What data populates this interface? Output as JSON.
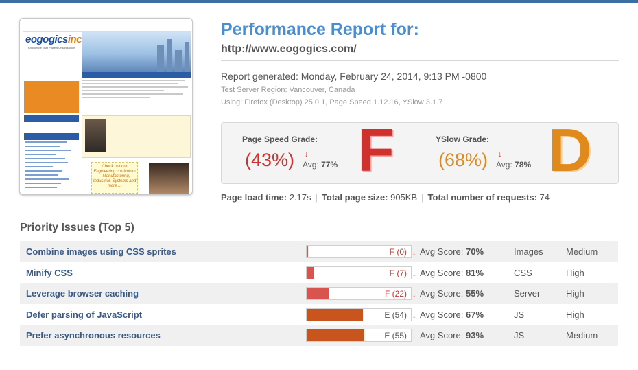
{
  "report": {
    "title": "Performance Report for:",
    "url": "http://www.eogogics.com/",
    "generated": "Report generated: Monday, February 24, 2014, 9:13 PM -0800",
    "region": "Test Server Region: Vancouver, Canada",
    "using": "Using: Firefox (Desktop) 25.0.1, Page Speed 1.12.16, YSlow 3.1.7"
  },
  "thumbnail": {
    "logo_main": "eogogics",
    "logo_suffix": "inc",
    "tagline": "Knowledge That Powers Organizations",
    "promo": "Check out our Engineering curriculum – Manufacturing, Industrial, Systems and more ..."
  },
  "grades": {
    "pagespeed": {
      "label": "Page Speed Grade:",
      "percent": "(43%)",
      "avg_prefix": "Avg:",
      "avg": "77%",
      "letter": "F",
      "color": "#d0312d"
    },
    "yslow": {
      "label": "YSlow Grade:",
      "percent": "(68%)",
      "avg_prefix": "Avg:",
      "avg": "78%",
      "letter": "D",
      "color": "#e08a1e"
    },
    "down_arrow": "↓"
  },
  "summary": {
    "load_label": "Page load time:",
    "load_value": "2.17s",
    "size_label": "Total page size:",
    "size_value": "905KB",
    "req_label": "Total number of requests:",
    "req_value": "74"
  },
  "priority": {
    "title": "Priority Issues (Top 5)",
    "avg_label": "Avg Score:",
    "issues": [
      {
        "name": "Combine images using CSS sprites",
        "grade": "F (0)",
        "score": 0,
        "avg": "70%",
        "type": "Images",
        "priority": "Medium"
      },
      {
        "name": "Minify CSS",
        "grade": "F (7)",
        "score": 7,
        "avg": "81%",
        "type": "CSS",
        "priority": "High"
      },
      {
        "name": "Leverage browser caching",
        "grade": "F (22)",
        "score": 22,
        "avg": "55%",
        "type": "Server",
        "priority": "High"
      },
      {
        "name": "Defer parsing of JavaScript",
        "grade": "E (54)",
        "score": 54,
        "avg": "67%",
        "type": "JS",
        "priority": "High"
      },
      {
        "name": "Prefer asynchronous resources",
        "grade": "E (55)",
        "score": 55,
        "avg": "93%",
        "type": "JS",
        "priority": "Medium"
      }
    ]
  },
  "colors": {
    "f_text": "#d0312d",
    "e_text": "#555555",
    "f_fill": "#d9534f",
    "e_fill": "#c8551e"
  }
}
